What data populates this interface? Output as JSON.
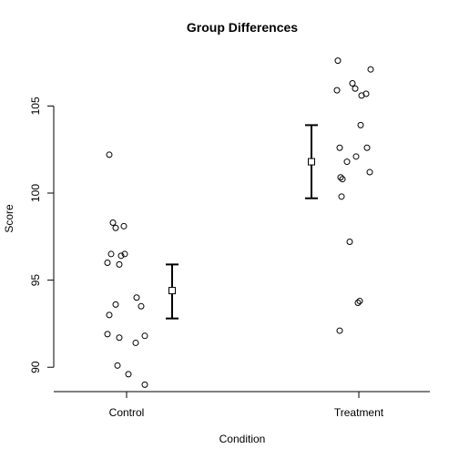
{
  "chart_data": {
    "type": "scatter",
    "title": "Group Differences",
    "xlabel": "Condition",
    "ylabel": "Score",
    "categories": [
      "Control",
      "Treatment"
    ],
    "ylim": [
      88.6,
      108.0
    ],
    "yticks": [
      90,
      95,
      100,
      105
    ],
    "grid": false,
    "legend": "none",
    "colors": {
      "points": "#000000",
      "axis": "#000000",
      "background": "#ffffff"
    },
    "points": [
      {
        "category": "Control",
        "values": [
          102.2,
          98.3,
          98.0,
          98.1,
          96.5,
          96.4,
          96.5,
          96.0,
          95.9,
          94.0,
          93.6,
          93.5,
          93.0,
          91.9,
          91.7,
          91.8,
          91.4,
          90.1,
          89.6,
          89.0
        ]
      },
      {
        "category": "Treatment",
        "values": [
          107.6,
          107.1,
          106.3,
          106.0,
          105.9,
          105.7,
          105.6,
          103.9,
          102.6,
          102.6,
          102.1,
          101.8,
          101.2,
          100.9,
          100.8,
          99.8,
          97.2,
          93.8,
          93.7,
          92.1
        ]
      }
    ],
    "summary": [
      {
        "category": "Control",
        "mean": 94.4,
        "lower": 92.8,
        "upper": 95.9
      },
      {
        "category": "Treatment",
        "mean": 101.8,
        "lower": 99.7,
        "upper": 103.9
      }
    ]
  }
}
